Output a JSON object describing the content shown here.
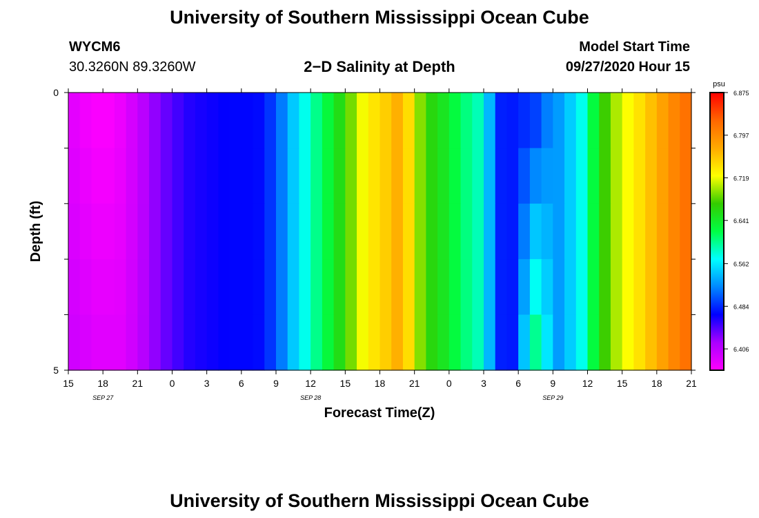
{
  "page": {
    "title_top": "University of Southern Mississippi Ocean Cube",
    "title_bottom": "University of Southern Mississippi Ocean Cube",
    "station": "WYCM6",
    "coords": "30.3260N 89.3260W",
    "plot_title": "2−D Salinity at Depth",
    "model_start_label": "Model Start Time",
    "model_start_value": "09/27/2020 Hour 15"
  },
  "chart_data": {
    "type": "heatmap",
    "title": "2−D Salinity at Depth",
    "xlabel": "Forecast Time(Z)",
    "ylabel": "Depth (ft)",
    "x_tick_labels": [
      "15",
      "18",
      "21",
      "0",
      "3",
      "6",
      "9",
      "12",
      "15",
      "18",
      "21",
      "0",
      "3",
      "6",
      "9",
      "12",
      "15",
      "18",
      "21"
    ],
    "date_labels": [
      {
        "label": "SEP 27",
        "tick_index": 1
      },
      {
        "label": "SEP 28",
        "tick_index": 7
      },
      {
        "label": "SEP 29",
        "tick_index": 14
      }
    ],
    "y_tick_labels": [
      "0",
      "5"
    ],
    "ylim": [
      0,
      5
    ],
    "y_inverted": true,
    "colorbar": {
      "unit": "psu",
      "min": 6.367,
      "max": 6.875,
      "tick_labels": [
        "6.875",
        "6.797",
        "6.719",
        "6.641",
        "6.562",
        "6.484",
        "6.406"
      ],
      "tick_values": [
        6.875,
        6.797,
        6.719,
        6.641,
        6.562,
        6.484,
        6.406
      ],
      "colors": [
        "#ff00ff",
        "#aa00ff",
        "#0000ff",
        "#0088ff",
        "#00ffff",
        "#00ff44",
        "#33cc00",
        "#ffff00",
        "#ffaa00",
        "#ff6600",
        "#ff0000"
      ]
    },
    "time_hours": [
      0,
      1,
      2,
      3,
      4,
      5,
      6,
      7,
      8,
      9,
      10,
      11,
      12,
      13,
      14,
      15,
      16,
      17,
      18,
      19,
      20,
      21,
      22,
      23,
      24,
      25,
      26,
      27,
      28,
      29,
      30,
      31,
      32,
      33,
      34,
      35,
      36,
      37,
      38,
      39,
      40,
      41,
      42,
      43,
      44,
      45,
      46,
      47,
      48,
      49,
      50,
      51,
      52,
      53,
      54
    ],
    "salinity_surface": [
      6.383,
      6.375,
      6.37,
      6.37,
      6.378,
      6.392,
      6.408,
      6.425,
      6.438,
      6.449,
      6.458,
      6.462,
      6.465,
      6.468,
      6.47,
      6.47,
      6.472,
      6.488,
      6.515,
      6.547,
      6.575,
      6.602,
      6.628,
      6.655,
      6.688,
      6.72,
      6.738,
      6.752,
      6.77,
      6.743,
      6.692,
      6.661,
      6.647,
      6.625,
      6.605,
      6.59,
      6.54,
      6.48,
      6.478,
      6.485,
      6.493,
      6.516,
      6.528,
      6.549,
      6.575,
      6.625,
      6.674,
      6.702,
      6.722,
      6.74,
      6.76,
      6.78,
      6.8,
      6.815,
      6.83
    ],
    "salinity_bottom": [
      6.395,
      6.39,
      6.385,
      6.385,
      6.385,
      6.395,
      6.41,
      6.425,
      6.438,
      6.449,
      6.458,
      6.462,
      6.465,
      6.468,
      6.47,
      6.47,
      6.472,
      6.488,
      6.515,
      6.547,
      6.575,
      6.602,
      6.628,
      6.655,
      6.688,
      6.72,
      6.738,
      6.752,
      6.77,
      6.743,
      6.692,
      6.661,
      6.647,
      6.625,
      6.605,
      6.59,
      6.54,
      6.48,
      6.478,
      6.545,
      6.6,
      6.56,
      6.528,
      6.549,
      6.575,
      6.625,
      6.674,
      6.702,
      6.722,
      6.74,
      6.76,
      6.78,
      6.8,
      6.815,
      6.83
    ]
  }
}
